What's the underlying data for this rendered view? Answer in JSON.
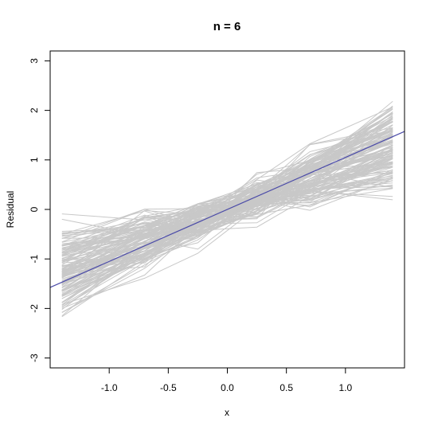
{
  "chart_data": {
    "type": "line",
    "title": "n = 6",
    "xlabel": "x",
    "ylabel": "Residual",
    "xlim": [
      -1.5,
      1.5
    ],
    "ylim": [
      -3.2,
      3.2
    ],
    "x_ticks": [
      -1.0,
      -0.5,
      0.0,
      0.5,
      1.0
    ],
    "x_tick_labels": [
      "-1.0",
      "-0.5",
      "0.0",
      "0.5",
      "1.0"
    ],
    "y_ticks": [
      -3,
      -2,
      -1,
      0,
      1,
      2,
      3
    ],
    "y_tick_labels": [
      "-3",
      "-2",
      "-1",
      "0",
      "1",
      "2",
      "3"
    ],
    "grid": false,
    "x": [
      -1.4,
      -0.7,
      -0.25,
      0.25,
      0.7,
      1.4
    ],
    "series_color": "#c8c8c8",
    "series_count": 140,
    "series_slope_range": [
      0.35,
      1.45
    ],
    "series_noise_sd": 0.18,
    "reference_line": {
      "slope": 1.05,
      "intercept": 0.0,
      "color": "#4b4ba8"
    }
  }
}
